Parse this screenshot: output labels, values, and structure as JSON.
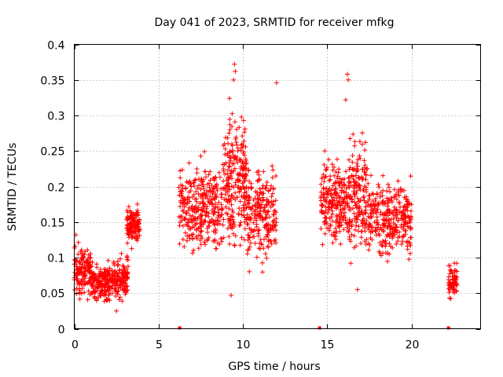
{
  "chart_data": {
    "type": "scatter",
    "title": "Day 041 of 2023, SRMTID for receiver mfkg",
    "xlabel": "GPS time / hours",
    "ylabel": "SRMTID / TECUs",
    "xlim": [
      0,
      24.1
    ],
    "ylim": [
      0,
      0.4
    ],
    "x_ticks": [
      0,
      5,
      10,
      15,
      20
    ],
    "x_tick_labels": [
      "0",
      "5",
      "10",
      "15",
      "20"
    ],
    "y_ticks": [
      0,
      0.05,
      0.1,
      0.15,
      0.2,
      0.25,
      0.3,
      0.35,
      0.4
    ],
    "y_tick_labels": [
      "0",
      "0.05",
      "0.1",
      "0.15",
      "0.2",
      "0.25",
      "0.3",
      "0.35",
      "0.4"
    ],
    "grid": true,
    "marker": "plus",
    "series_color": "#ff0000",
    "gap_markers_x": [
      6.25,
      14.55,
      22.2
    ],
    "segments": [
      {
        "x_start": 0.0,
        "x_end": 1.0,
        "y_center": 0.08,
        "y_spread": 0.035,
        "count": 150
      },
      {
        "x_start": 1.0,
        "x_end": 2.3,
        "y_center": 0.065,
        "y_spread": 0.025,
        "count": 200
      },
      {
        "x_start": 2.3,
        "x_end": 3.2,
        "y_center": 0.07,
        "y_spread": 0.03,
        "count": 120
      },
      {
        "x_start": 3.1,
        "x_end": 3.9,
        "y_center": 0.145,
        "y_spread": 0.025,
        "count": 130
      },
      {
        "x_start": 6.2,
        "x_end": 8.8,
        "y_center": 0.17,
        "y_spread": 0.06,
        "count": 320
      },
      {
        "x_start": 8.8,
        "x_end": 10.2,
        "y_center": 0.21,
        "y_spread": 0.09,
        "count": 230
      },
      {
        "x_start": 10.2,
        "x_end": 12.0,
        "y_center": 0.16,
        "y_spread": 0.06,
        "count": 230
      },
      {
        "x_start": 14.6,
        "x_end": 16.2,
        "y_center": 0.18,
        "y_spread": 0.06,
        "count": 220
      },
      {
        "x_start": 16.2,
        "x_end": 17.5,
        "y_center": 0.19,
        "y_spread": 0.08,
        "count": 190
      },
      {
        "x_start": 17.5,
        "x_end": 20.0,
        "y_center": 0.155,
        "y_spread": 0.05,
        "count": 300
      },
      {
        "x_start": 22.2,
        "x_end": 22.7,
        "y_center": 0.065,
        "y_spread": 0.025,
        "count": 80
      }
    ],
    "notable_points": [
      {
        "x": 9.5,
        "y": 0.372
      },
      {
        "x": 9.55,
        "y": 0.362
      },
      {
        "x": 9.45,
        "y": 0.35
      },
      {
        "x": 16.2,
        "y": 0.358
      },
      {
        "x": 16.25,
        "y": 0.35
      },
      {
        "x": 12.0,
        "y": 0.346
      },
      {
        "x": 9.2,
        "y": 0.324
      },
      {
        "x": 16.1,
        "y": 0.322
      },
      {
        "x": 0.1,
        "y": 0.132
      },
      {
        "x": 9.3,
        "y": 0.047
      },
      {
        "x": 16.8,
        "y": 0.055
      },
      {
        "x": 2.5,
        "y": 0.025
      }
    ]
  }
}
